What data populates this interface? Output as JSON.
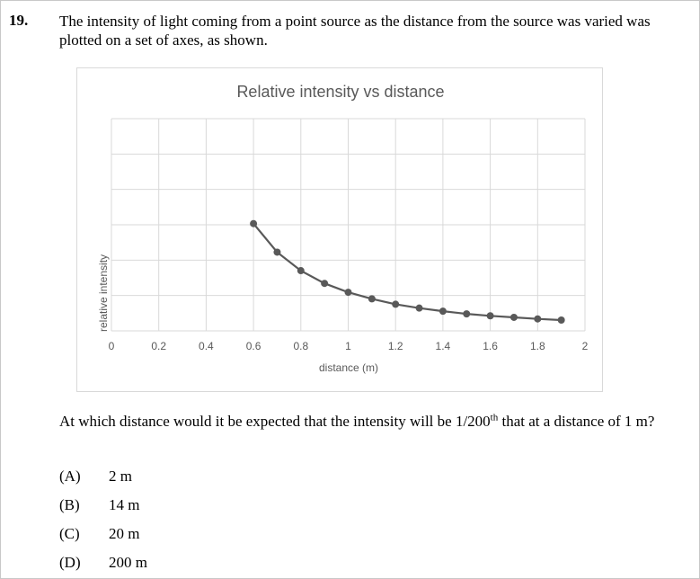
{
  "question": {
    "number": "19.",
    "stem": "The intensity of light coming from a point source as the distance from the source was varied was plotted on a set of axes, as shown.",
    "prompt_before": "At which distance would it be expected that the intensity will be 1/200",
    "prompt_sup": "th",
    "prompt_after": " that at a distance of 1 m?",
    "options": [
      {
        "label": "(A)",
        "text": "2 m"
      },
      {
        "label": "(B)",
        "text": "14 m"
      },
      {
        "label": "(C)",
        "text": "20 m"
      },
      {
        "label": "(D)",
        "text": "200 m"
      }
    ]
  },
  "chart_data": {
    "type": "line",
    "title": "Relative intensity vs distance",
    "xlabel": "distance (m)",
    "ylabel": "relative intensity",
    "xlim": [
      0,
      2
    ],
    "x_ticks": [
      "0",
      "0.2",
      "0.4",
      "0.6",
      "0.8",
      "1",
      "1.2",
      "1.4",
      "1.6",
      "1.8",
      "2"
    ],
    "ylim": [
      0,
      5.5
    ],
    "y_tick_labels_shown": false,
    "grid": true,
    "legend": "none",
    "series": [
      {
        "x": [
          0.6,
          0.7,
          0.8,
          0.9,
          1.0,
          1.1,
          1.2,
          1.3,
          1.4,
          1.5,
          1.6,
          1.7,
          1.8,
          1.9
        ],
        "values": [
          2.78,
          2.04,
          1.56,
          1.23,
          1.0,
          0.83,
          0.69,
          0.59,
          0.51,
          0.44,
          0.39,
          0.35,
          0.31,
          0.28
        ],
        "color": "#595959"
      }
    ]
  }
}
